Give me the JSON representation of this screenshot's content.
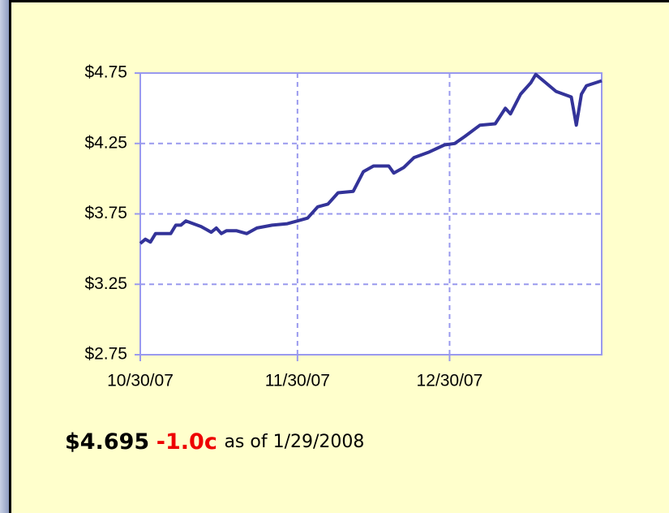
{
  "chart_data": {
    "type": "line",
    "x": [
      "10/30/07",
      "10/31/07",
      "11/1/07",
      "11/2/07",
      "11/5/07",
      "11/6/07",
      "11/7/07",
      "11/8/07",
      "11/11/07",
      "11/13/07",
      "11/14/07",
      "11/15/07",
      "11/16/07",
      "11/18/07",
      "11/20/07",
      "11/22/07",
      "11/25/07",
      "11/28/07",
      "11/30/07",
      "12/2/07",
      "12/4/07",
      "12/6/07",
      "12/8/07",
      "12/11/07",
      "12/13/07",
      "12/15/07",
      "12/18/07",
      "12/19/07",
      "12/21/07",
      "12/23/07",
      "12/26/07",
      "12/29/07",
      "12/31/07",
      "1/2/08",
      "1/5/08",
      "1/8/08",
      "1/10/08",
      "1/11/08",
      "1/13/08",
      "1/15/08",
      "1/16/08",
      "1/18/08",
      "1/20/08",
      "1/23/08",
      "1/24/08",
      "1/25/08",
      "1/26/08",
      "1/29/08"
    ],
    "values": [
      3.54,
      3.57,
      3.55,
      3.61,
      3.61,
      3.67,
      3.67,
      3.7,
      3.66,
      3.62,
      3.65,
      3.61,
      3.63,
      3.63,
      3.61,
      3.65,
      3.67,
      3.68,
      3.7,
      3.72,
      3.8,
      3.82,
      3.9,
      3.91,
      4.05,
      4.09,
      4.09,
      4.04,
      4.08,
      4.15,
      4.19,
      4.24,
      4.25,
      4.3,
      4.38,
      4.39,
      4.5,
      4.46,
      4.6,
      4.68,
      4.74,
      4.68,
      4.62,
      4.58,
      4.38,
      4.6,
      4.66,
      4.695
    ],
    "color": "#333399",
    "xlim": [
      "10/30/07",
      "1/29/08"
    ],
    "xticks": [
      "10/30/07",
      "11/30/07",
      "12/30/07"
    ],
    "ylim": [
      2.75,
      4.75
    ],
    "yticks": [
      {
        "value": 2.75,
        "label": "$2.75"
      },
      {
        "value": 3.25,
        "label": "$3.25"
      },
      {
        "value": 3.75,
        "label": "$3.75"
      },
      {
        "value": 4.25,
        "label": "$4.25"
      },
      {
        "value": 4.75,
        "label": "$4.75"
      }
    ],
    "grid": true,
    "footer": {
      "price": "$4.695",
      "change": "-1.0c",
      "as_of": "as of 1/29/2008"
    }
  }
}
